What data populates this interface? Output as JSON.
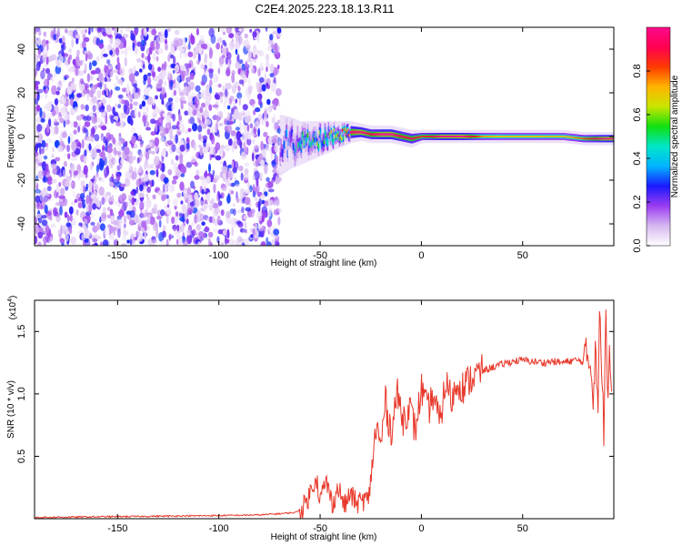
{
  "title": "C2E4.2025.223.18.13.R11",
  "chart_data": [
    {
      "type": "heatmap",
      "title": "C2E4.2025.223.18.13.R11",
      "xlabel": "Height of straight line (km)",
      "ylabel": "Frequency (Hz)",
      "xlim": [
        -191,
        95
      ],
      "ylim": [
        -50,
        50
      ],
      "x_ticks": [
        -150,
        -100,
        -50,
        0,
        50
      ],
      "y_ticks": [
        -40,
        -20,
        0,
        20,
        40
      ],
      "colorbar": {
        "label": "Normalized spectral amplitude",
        "range": [
          0,
          1
        ],
        "ticks": [
          0.0,
          0.2,
          0.4,
          0.6,
          0.8
        ],
        "colors": [
          "#ffffff",
          "#d6b8f0",
          "#9b3cf0",
          "#1a1aff",
          "#00b4ff",
          "#00e6c8",
          "#10e010",
          "#c8e600",
          "#ffb400",
          "#ff3c00",
          "#ff0050",
          "#ff0a8c"
        ]
      },
      "noise_region": {
        "x_range": [
          -191,
          -70
        ],
        "amplitude_range": [
          0.03,
          0.3
        ]
      },
      "signal_track": {
        "x": [
          -70,
          -65,
          -60,
          -55,
          -50,
          -45,
          -40,
          -35,
          -30,
          -25,
          -20,
          -15,
          -10,
          -5,
          0,
          5,
          10,
          15,
          20,
          30,
          40,
          50,
          60,
          70,
          80,
          90,
          95
        ],
        "freq_center": [
          -4,
          -3,
          -3,
          -2,
          -1,
          0,
          1,
          2,
          2,
          1,
          1,
          1,
          0,
          -1,
          0,
          0,
          0,
          0,
          0,
          0,
          0,
          0,
          0,
          0,
          -1,
          -1,
          -1
        ],
        "freq_spread": [
          14,
          12,
          10,
          9,
          8,
          7,
          6,
          5,
          4,
          4,
          4,
          4,
          4,
          4,
          3,
          3,
          3,
          3,
          3,
          3,
          3,
          3,
          3,
          3,
          3,
          3,
          3
        ],
        "peak_amplitude": [
          0.3,
          0.35,
          0.5,
          0.55,
          0.6,
          0.7,
          0.8,
          0.95,
          1.0,
          0.9,
          1.0,
          1.0,
          0.9,
          0.9,
          0.85,
          0.9,
          1.0,
          1.0,
          1.0,
          0.75,
          0.7,
          0.7,
          0.7,
          0.7,
          0.8,
          1.0,
          1.0
        ]
      }
    },
    {
      "type": "line",
      "xlabel": "Height of straight line (km)",
      "ylabel": "SNR (10 * v/v)",
      "y_multiplier": "(x10",
      "y_exponent": "4",
      "y_multiplier_close": ")",
      "xlim": [
        -191,
        95
      ],
      "ylim": [
        0,
        1.75
      ],
      "x_ticks": [
        -150,
        -100,
        -50,
        0,
        50
      ],
      "y_ticks": [
        0.5,
        1.0,
        1.5
      ],
      "y_tick_labels": [
        "0.5",
        "1.0",
        "1.5"
      ],
      "grid": false,
      "series": [
        {
          "color": "#e8382a",
          "x": [
            -191,
            -160,
            -130,
            -100,
            -80,
            -70,
            -62,
            -58,
            -55,
            -52,
            -50,
            -47,
            -44,
            -41,
            -38,
            -35,
            -32,
            -29,
            -26,
            -24,
            -22,
            -20,
            -18,
            -15,
            -12,
            -9,
            -6,
            -3,
            0,
            3,
            6,
            9,
            12,
            15,
            18,
            21,
            24,
            27,
            30,
            33,
            36,
            39,
            42,
            45,
            50,
            55,
            60,
            65,
            70,
            75,
            80,
            83,
            85,
            86,
            87,
            88,
            89,
            90,
            91,
            92,
            93,
            94
          ],
          "y": [
            0.01,
            0.015,
            0.02,
            0.025,
            0.03,
            0.04,
            0.05,
            0.1,
            0.2,
            0.35,
            0.15,
            0.3,
            0.12,
            0.25,
            0.1,
            0.2,
            0.12,
            0.15,
            0.15,
            0.5,
            0.75,
            0.55,
            0.95,
            0.7,
            1.0,
            0.8,
            0.9,
            0.7,
            1.05,
            0.85,
            1.0,
            0.75,
            1.1,
            0.95,
            1.1,
            1.05,
            1.12,
            1.15,
            1.18,
            1.2,
            1.22,
            1.23,
            1.25,
            1.26,
            1.27,
            1.26,
            1.25,
            1.26,
            1.25,
            1.27,
            1.26,
            1.3,
            1.0,
            1.5,
            0.8,
            1.6,
            1.2,
            0.7,
            1.7,
            1.1,
            1.4,
            1.1
          ]
        }
      ]
    }
  ]
}
